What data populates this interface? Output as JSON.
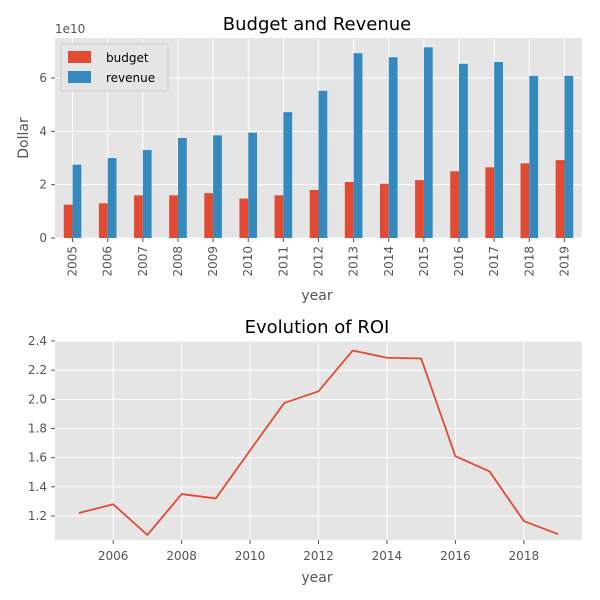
{
  "chart_data": [
    {
      "type": "bar",
      "title": "Budget and Revenue",
      "xlabel": "year",
      "ylabel": "Dollar",
      "y_multiplier": "1e10",
      "categories": [
        "2005",
        "2006",
        "2007",
        "2008",
        "2009",
        "2010",
        "2011",
        "2012",
        "2013",
        "2014",
        "2015",
        "2016",
        "2017",
        "2018",
        "2019"
      ],
      "series": [
        {
          "name": "budget",
          "color": "#E24A33",
          "values": [
            1.25,
            1.3,
            1.6,
            1.6,
            1.68,
            1.48,
            1.6,
            1.8,
            2.1,
            2.03,
            2.17,
            2.5,
            2.65,
            2.8,
            2.92
          ]
        },
        {
          "name": "revenue",
          "color": "#348ABD",
          "values": [
            2.75,
            3.0,
            3.3,
            3.75,
            3.85,
            3.95,
            4.72,
            5.52,
            6.93,
            6.78,
            7.15,
            6.53,
            6.6,
            6.08,
            6.08
          ]
        }
      ],
      "ylim": [
        0,
        7.5
      ],
      "yticks": [
        0,
        2,
        4,
        6
      ],
      "ytick_labels": [
        "0",
        "2",
        "4",
        "6"
      ],
      "grid": true,
      "legend_position": "top-left"
    },
    {
      "type": "line",
      "title": "Evolution of ROI",
      "xlabel": "year",
      "ylabel": "",
      "x": [
        2005,
        2006,
        2007,
        2008,
        2009,
        2010,
        2011,
        2012,
        2013,
        2014,
        2015,
        2016,
        2017,
        2018,
        2019
      ],
      "series": [
        {
          "color": "#E24A33",
          "values": [
            1.22,
            1.28,
            1.07,
            1.35,
            1.32,
            1.65,
            1.975,
            2.055,
            2.335,
            2.285,
            2.28,
            1.61,
            1.505,
            1.165,
            1.075
          ]
        }
      ],
      "xlim": [
        2004.3,
        2019.7
      ],
      "ylim": [
        1.035,
        2.4
      ],
      "xticks": [
        2006,
        2008,
        2010,
        2012,
        2014,
        2016,
        2018
      ],
      "xtick_labels": [
        "2006",
        "2008",
        "2010",
        "2012",
        "2014",
        "2016",
        "2018"
      ],
      "yticks": [
        1.2,
        1.4,
        1.6,
        1.8,
        2.0,
        2.2,
        2.4
      ],
      "ytick_labels": [
        "1.2",
        "1.4",
        "1.6",
        "1.8",
        "2.0",
        "2.2",
        "2.4"
      ],
      "grid": true
    }
  ]
}
